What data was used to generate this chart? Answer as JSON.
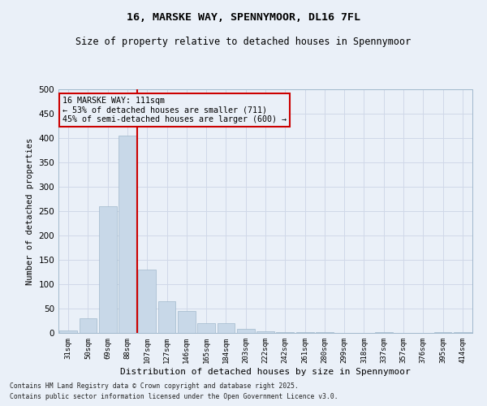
{
  "title1": "16, MARSKE WAY, SPENNYMOOR, DL16 7FL",
  "title2": "Size of property relative to detached houses in Spennymoor",
  "xlabel": "Distribution of detached houses by size in Spennymoor",
  "ylabel": "Number of detached properties",
  "categories": [
    "31sqm",
    "50sqm",
    "69sqm",
    "88sqm",
    "107sqm",
    "127sqm",
    "146sqm",
    "165sqm",
    "184sqm",
    "203sqm",
    "222sqm",
    "242sqm",
    "261sqm",
    "280sqm",
    "299sqm",
    "318sqm",
    "337sqm",
    "357sqm",
    "376sqm",
    "395sqm",
    "414sqm"
  ],
  "values": [
    5,
    30,
    260,
    405,
    130,
    65,
    45,
    20,
    20,
    8,
    3,
    1,
    1,
    1,
    0,
    0,
    1,
    0,
    0,
    1,
    1
  ],
  "bar_color": "#c8d8e8",
  "bar_edgecolor": "#a0b8cc",
  "grid_color": "#d0d8e8",
  "bg_color": "#eaf0f8",
  "vline_color": "#cc0000",
  "vline_x_index": 4,
  "annotation_text": "16 MARSKE WAY: 111sqm\n← 53% of detached houses are smaller (711)\n45% of semi-detached houses are larger (600) →",
  "annotation_box_color": "#cc0000",
  "footer1": "Contains HM Land Registry data © Crown copyright and database right 2025.",
  "footer2": "Contains public sector information licensed under the Open Government Licence v3.0.",
  "ylim": [
    0,
    500
  ],
  "yticks": [
    0,
    50,
    100,
    150,
    200,
    250,
    300,
    350,
    400,
    450,
    500
  ]
}
